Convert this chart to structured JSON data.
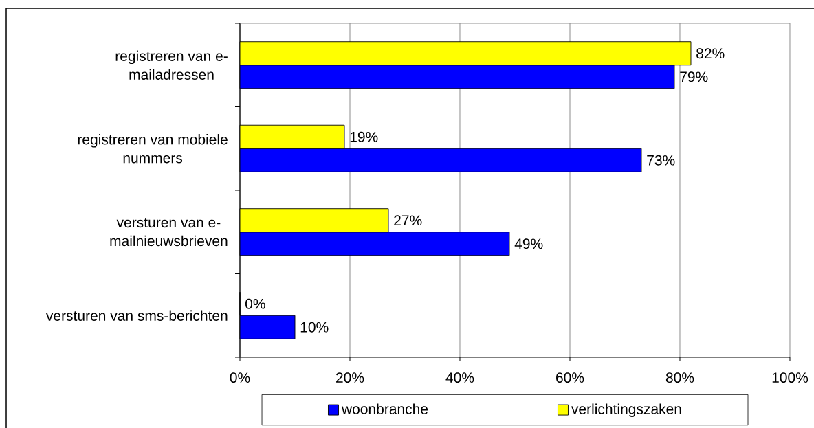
{
  "chart_data": {
    "type": "bar",
    "orientation": "horizontal",
    "categories": [
      "registreren van e-mailadressen",
      "registreren van mobiele nummers",
      "versturen van e-mailnieuwsbrieven",
      "versturen van sms-berichten"
    ],
    "series": [
      {
        "name": "woonbranche",
        "color": "#0000ff",
        "values": [
          79,
          73,
          49,
          10
        ],
        "value_labels": [
          "79%",
          "73%",
          "49%",
          "10%"
        ]
      },
      {
        "name": "verlichtingszaken",
        "color": "#ffff00",
        "values": [
          82,
          19,
          27,
          0
        ],
        "value_labels": [
          "82%",
          "19%",
          "27%",
          "0%"
        ]
      }
    ],
    "xlim": [
      0,
      100
    ],
    "xticks": [
      {
        "value": 0,
        "label": "0%"
      },
      {
        "value": 20,
        "label": "20%"
      },
      {
        "value": 40,
        "label": "40%"
      },
      {
        "value": 60,
        "label": "60%"
      },
      {
        "value": 80,
        "label": "80%"
      },
      {
        "value": 100,
        "label": "100%"
      }
    ],
    "grid": "x",
    "legend": "bottom"
  }
}
